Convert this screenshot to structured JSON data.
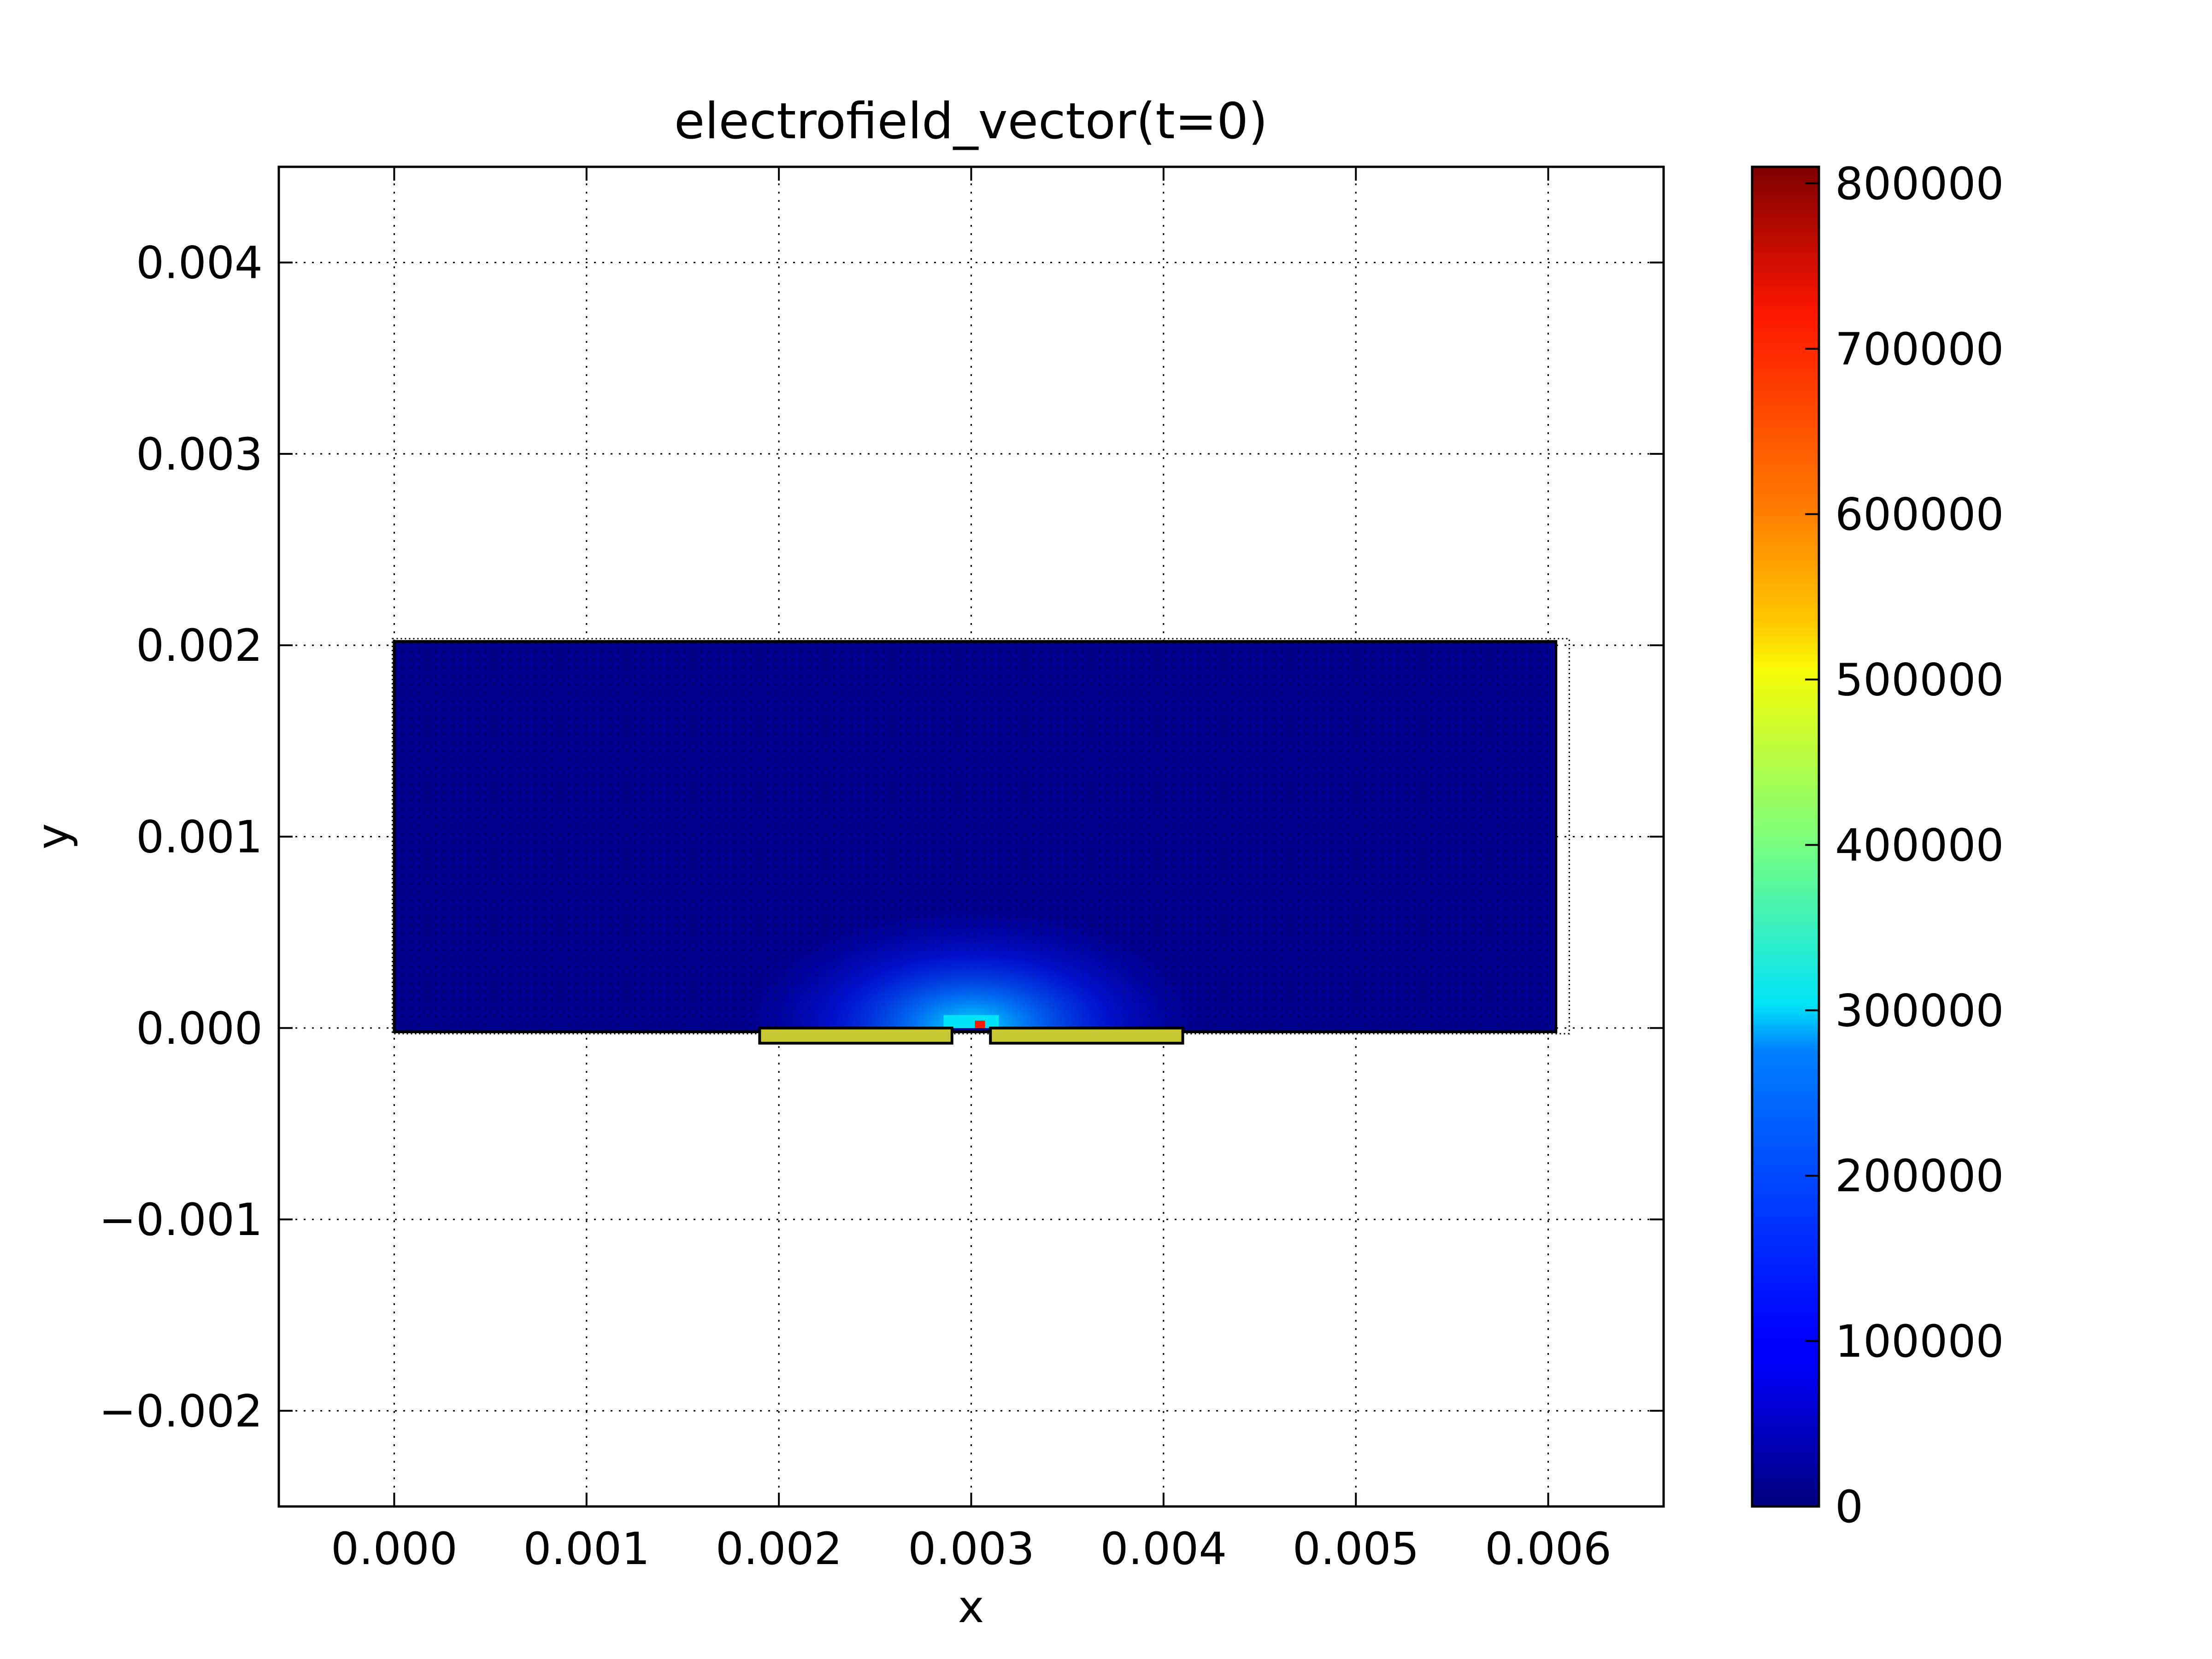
{
  "chart_data": {
    "type": "heatmap",
    "title": "electrofield_vector(t=0)",
    "xlabel": "x",
    "ylabel": "y",
    "xlim": [
      -0.0006,
      0.0066
    ],
    "ylim": [
      -0.0025,
      0.0045
    ],
    "xticks": [
      0.0,
      0.001,
      0.002,
      0.003,
      0.004,
      0.005,
      0.006
    ],
    "xtick_labels": [
      "0.000",
      "0.001",
      "0.002",
      "0.003",
      "0.004",
      "0.005",
      "0.006"
    ],
    "yticks": [
      0.004,
      0.003,
      0.002,
      0.001,
      0.0,
      -0.001,
      -0.002
    ],
    "ytick_labels": [
      "0.004",
      "0.003",
      "0.002",
      "0.001",
      "0.000",
      "−0.001",
      "−0.002"
    ],
    "grid": true,
    "colormap": "jet",
    "colorbar": {
      "min": 0,
      "max": 810000,
      "ticks": [
        800000,
        700000,
        600000,
        500000,
        400000,
        300000,
        200000,
        100000,
        0
      ],
      "tick_labels": [
        "800000",
        "700000",
        "600000",
        "500000",
        "400000",
        "300000",
        "200000",
        "100000",
        "0"
      ]
    },
    "domain": {
      "x": [
        0.0,
        0.00604
      ],
      "y": [
        -2e-05,
        0.00202
      ],
      "color": "#00008f"
    },
    "field_peak": {
      "x": 0.003,
      "y": 0.0,
      "value": 810000
    },
    "electrodes": [
      {
        "name": "left electrode",
        "x": [
          0.0019,
          0.0029
        ],
        "y": [
          -6e-05,
          0.0
        ],
        "color": "#c8c832"
      },
      {
        "name": "right electrode",
        "x": [
          0.0031,
          0.0041
        ],
        "y": [
          -6e-05,
          0.0
        ],
        "color": "#c8c832"
      }
    ]
  }
}
